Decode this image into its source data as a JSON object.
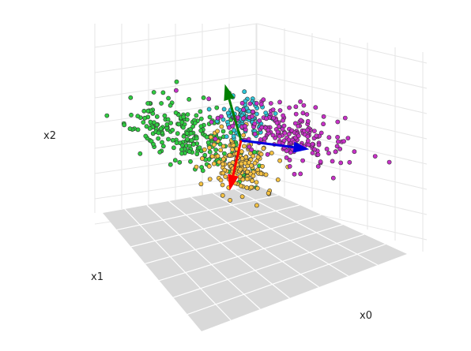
{
  "chart_data": {
    "type": "scatter3d",
    "title": "",
    "axes": {
      "x": "x0",
      "y": "x1",
      "z": "x2"
    },
    "grid": true,
    "clusters": [
      {
        "name": "",
        "color": "#2ecc40",
        "count": 230,
        "center": [
          -2.2,
          -1.0,
          -0.2
        ],
        "spread": [
          1.0,
          0.9,
          0.7
        ]
      },
      {
        "name": "",
        "color": "#f5c242",
        "count": 170,
        "center": [
          -0.3,
          -0.6,
          -1.0
        ],
        "spread": [
          0.6,
          0.5,
          0.6
        ]
      },
      {
        "name": "",
        "color": "#2ec4d6",
        "count": 90,
        "center": [
          0.3,
          0.9,
          0.9
        ],
        "spread": [
          0.5,
          0.4,
          0.4
        ]
      },
      {
        "name": "",
        "color": "#c830c8",
        "count": 210,
        "center": [
          2.2,
          1.4,
          0.6
        ],
        "spread": [
          1.0,
          0.9,
          0.6
        ]
      }
    ],
    "vectors": [
      {
        "color": "#008000",
        "from": [
          0,
          0,
          0
        ],
        "to": [
          -0.5,
          0.2,
          2.2
        ]
      },
      {
        "color": "#0000dd",
        "from": [
          0,
          0,
          0
        ],
        "to": [
          2.6,
          0.6,
          0.2
        ]
      },
      {
        "color": "#ff0000",
        "from": [
          0,
          0,
          0
        ],
        "to": [
          -0.5,
          -0.3,
          -2.2
        ]
      }
    ]
  }
}
